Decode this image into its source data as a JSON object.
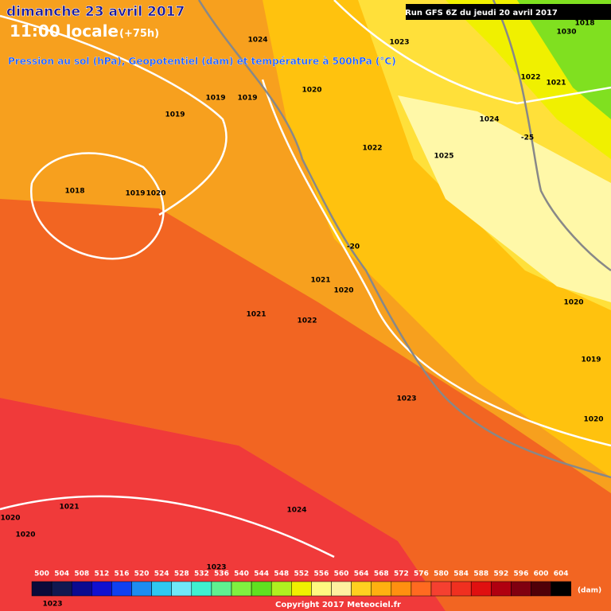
{
  "header": {
    "date": "dimanche 23 avril 2017",
    "time": "11:00 locale",
    "lead": "(+75h)",
    "subtitle": "Pression au sol (hPa), Geopotentiel (dam) et température à 500hPa (°C)",
    "run": "Run GFS 6Z du jeudi 20 avril 2017"
  },
  "isobar_labels": [
    1024,
    1023,
    1020,
    1019,
    1019,
    1019,
    1018,
    1019,
    1020,
    1022,
    1021,
    1024,
    1025,
    1022,
    1021,
    1020,
    1021,
    1022,
    1023,
    1020,
    1019,
    1020,
    1021,
    1024,
    1020,
    1020,
    1023,
    1023,
    1018,
    1030
  ],
  "isotherm_labels": [
    -25,
    -20
  ],
  "colorbar": {
    "values": [
      500,
      504,
      508,
      512,
      516,
      520,
      524,
      528,
      532,
      536,
      540,
      544,
      548,
      552,
      556,
      560,
      564,
      568,
      572,
      576,
      580,
      584,
      588,
      592,
      596,
      600,
      604
    ],
    "colors": [
      "#0a0a3a",
      "#101850",
      "#0a0a90",
      "#1010d0",
      "#1040f0",
      "#1e8cf0",
      "#30c8f0",
      "#70e8f8",
      "#40f0d0",
      "#60f090",
      "#80f040",
      "#60e020",
      "#b0f020",
      "#f0f000",
      "#fff880",
      "#fff0a0",
      "#ffd020",
      "#ffb010",
      "#ff9010",
      "#ff6a20",
      "#f54030",
      "#f03020",
      "#e01010",
      "#b00010",
      "#800010",
      "#500008",
      "#000000"
    ],
    "unit": "(dam)"
  },
  "footer": {
    "copyright": "Copyright 2017 Meteociel.fr"
  }
}
